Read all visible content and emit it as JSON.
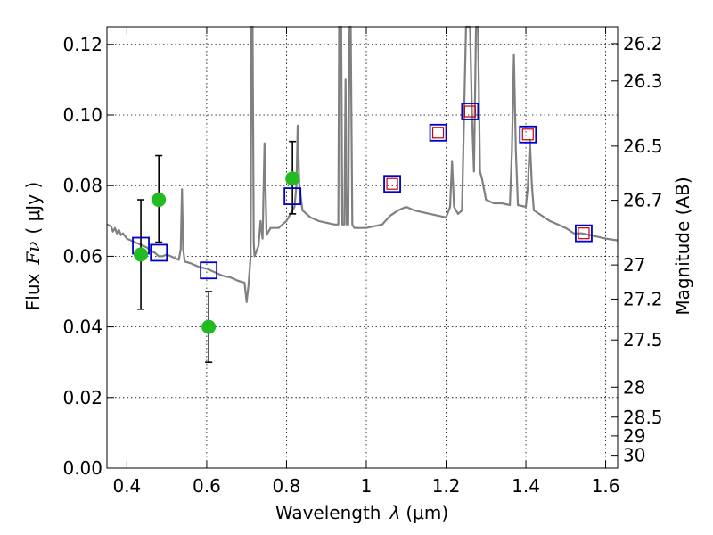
{
  "chart_data": {
    "type": "scatter",
    "xlabel": "Wavelength",
    "xlabel_symbol": "λ",
    "xlabel_unit": "(μm)",
    "ylabel": "Flux",
    "ylabel_symbol": "Fν",
    "ylabel_unit": "( μJy )",
    "ylabel_right": "Magnitude (AB)",
    "xlim": [
      0.35,
      1.63
    ],
    "ylim": [
      0.0,
      0.125
    ],
    "grid": true,
    "x_ticks": [
      0.4,
      0.6,
      0.8,
      1.0,
      1.2,
      1.4,
      1.6
    ],
    "x_tick_labels": [
      "0.4",
      "0.6",
      "0.8",
      "1",
      "1.2",
      "1.4",
      "1.6"
    ],
    "y_ticks": [
      0.0,
      0.02,
      0.04,
      0.06,
      0.08,
      0.1,
      0.12
    ],
    "y_tick_labels": [
      "0.00",
      "0.02",
      "0.04",
      "0.06",
      "0.08",
      "0.10",
      "0.12"
    ],
    "mag_ticks": [
      "26.2",
      "26.3",
      "26.5",
      "26.7",
      "27",
      "27.2",
      "27.5",
      "28",
      "28.5",
      "29",
      "30"
    ],
    "colors": {
      "spectrum": "#808080",
      "observed": "#22bb22",
      "model_box": "#0000cc",
      "model_inner": "#cc0000",
      "errorbar": "#000000"
    },
    "spectrum": [
      [
        0.35,
        0.069
      ],
      [
        0.36,
        0.0685
      ],
      [
        0.365,
        0.067
      ],
      [
        0.37,
        0.068
      ],
      [
        0.375,
        0.0665
      ],
      [
        0.38,
        0.0675
      ],
      [
        0.385,
        0.066
      ],
      [
        0.39,
        0.0665
      ],
      [
        0.4,
        0.065
      ],
      [
        0.41,
        0.0645
      ],
      [
        0.42,
        0.064
      ],
      [
        0.43,
        0.0635
      ],
      [
        0.44,
        0.063
      ],
      [
        0.45,
        0.0625
      ],
      [
        0.46,
        0.0615
      ],
      [
        0.47,
        0.061
      ],
      [
        0.48,
        0.06
      ],
      [
        0.49,
        0.06
      ],
      [
        0.5,
        0.0605
      ],
      [
        0.51,
        0.06
      ],
      [
        0.52,
        0.0595
      ],
      [
        0.53,
        0.059
      ],
      [
        0.535,
        0.062
      ],
      [
        0.538,
        0.079
      ],
      [
        0.541,
        0.062
      ],
      [
        0.545,
        0.0585
      ],
      [
        0.56,
        0.058
      ],
      [
        0.58,
        0.057
      ],
      [
        0.6,
        0.0565
      ],
      [
        0.62,
        0.0555
      ],
      [
        0.64,
        0.0545
      ],
      [
        0.66,
        0.054
      ],
      [
        0.68,
        0.053
      ],
      [
        0.695,
        0.0525
      ],
      [
        0.7,
        0.047
      ],
      [
        0.705,
        0.052
      ],
      [
        0.71,
        0.06
      ],
      [
        0.712,
        0.125
      ],
      [
        0.715,
        0.125
      ],
      [
        0.718,
        0.064
      ],
      [
        0.72,
        0.06
      ],
      [
        0.73,
        0.063
      ],
      [
        0.735,
        0.07
      ],
      [
        0.74,
        0.065
      ],
      [
        0.745,
        0.092
      ],
      [
        0.75,
        0.066
      ],
      [
        0.76,
        0.068
      ],
      [
        0.78,
        0.068
      ],
      [
        0.8,
        0.07
      ],
      [
        0.81,
        0.072
      ],
      [
        0.82,
        0.074
      ],
      [
        0.825,
        0.08
      ],
      [
        0.828,
        0.097
      ],
      [
        0.832,
        0.08
      ],
      [
        0.84,
        0.073
      ],
      [
        0.86,
        0.071
      ],
      [
        0.88,
        0.07
      ],
      [
        0.9,
        0.0695
      ],
      [
        0.92,
        0.069
      ],
      [
        0.93,
        0.069
      ],
      [
        0.932,
        0.125
      ],
      [
        0.937,
        0.125
      ],
      [
        0.94,
        0.069
      ],
      [
        0.945,
        0.069
      ],
      [
        0.948,
        0.11
      ],
      [
        0.951,
        0.069
      ],
      [
        0.955,
        0.069
      ],
      [
        0.958,
        0.125
      ],
      [
        0.961,
        0.125
      ],
      [
        0.965,
        0.069
      ],
      [
        0.97,
        0.068
      ],
      [
        1.0,
        0.068
      ],
      [
        1.02,
        0.0685
      ],
      [
        1.04,
        0.069
      ],
      [
        1.06,
        0.0715
      ],
      [
        1.08,
        0.073
      ],
      [
        1.1,
        0.074
      ],
      [
        1.12,
        0.073
      ],
      [
        1.14,
        0.0725
      ],
      [
        1.16,
        0.072
      ],
      [
        1.18,
        0.0715
      ],
      [
        1.2,
        0.071
      ],
      [
        1.21,
        0.074
      ],
      [
        1.215,
        0.087
      ],
      [
        1.22,
        0.074
      ],
      [
        1.23,
        0.072
      ],
      [
        1.24,
        0.073
      ],
      [
        1.245,
        0.1
      ],
      [
        1.25,
        0.125
      ],
      [
        1.255,
        0.125
      ],
      [
        1.26,
        0.125
      ],
      [
        1.265,
        0.1
      ],
      [
        1.27,
        0.084
      ],
      [
        1.275,
        0.125
      ],
      [
        1.28,
        0.125
      ],
      [
        1.285,
        0.084
      ],
      [
        1.29,
        0.082
      ],
      [
        1.3,
        0.076
      ],
      [
        1.32,
        0.075
      ],
      [
        1.34,
        0.075
      ],
      [
        1.36,
        0.0745
      ],
      [
        1.365,
        0.09
      ],
      [
        1.37,
        0.117
      ],
      [
        1.375,
        0.09
      ],
      [
        1.38,
        0.0745
      ],
      [
        1.4,
        0.074
      ],
      [
        1.405,
        0.08
      ],
      [
        1.41,
        0.093
      ],
      [
        1.415,
        0.08
      ],
      [
        1.42,
        0.073
      ],
      [
        1.44,
        0.0715
      ],
      [
        1.46,
        0.07
      ],
      [
        1.48,
        0.069
      ],
      [
        1.5,
        0.068
      ],
      [
        1.52,
        0.0665
      ],
      [
        1.54,
        0.0665
      ],
      [
        1.56,
        0.066
      ],
      [
        1.58,
        0.0655
      ],
      [
        1.6,
        0.065
      ],
      [
        1.63,
        0.0645
      ]
    ],
    "observed": [
      {
        "x": 0.435,
        "y": 0.0605,
        "ylow": 0.045,
        "yhigh": 0.076
      },
      {
        "x": 0.48,
        "y": 0.076,
        "ylow": 0.064,
        "yhigh": 0.0885
      },
      {
        "x": 0.605,
        "y": 0.04,
        "ylow": 0.03,
        "yhigh": 0.05
      },
      {
        "x": 0.815,
        "y": 0.082,
        "ylow": 0.072,
        "yhigh": 0.0925
      }
    ],
    "model": [
      {
        "x": 0.435,
        "y": 0.063,
        "inner": false
      },
      {
        "x": 0.48,
        "y": 0.061,
        "inner": false
      },
      {
        "x": 0.605,
        "y": 0.056,
        "inner": false
      },
      {
        "x": 0.815,
        "y": 0.077,
        "inner": false
      },
      {
        "x": 1.065,
        "y": 0.0805,
        "inner": true
      },
      {
        "x": 1.18,
        "y": 0.095,
        "inner": true
      },
      {
        "x": 1.26,
        "y": 0.101,
        "inner": true
      },
      {
        "x": 1.405,
        "y": 0.0945,
        "inner": true
      },
      {
        "x": 1.545,
        "y": 0.0665,
        "inner": true
      }
    ]
  }
}
